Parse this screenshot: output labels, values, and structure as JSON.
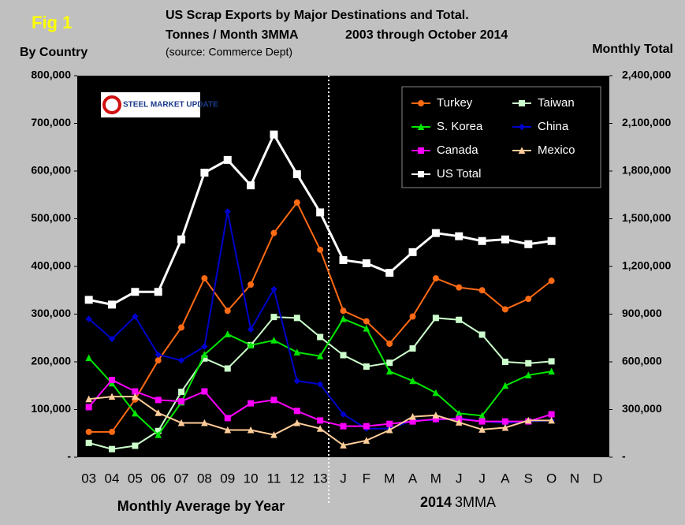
{
  "chart_data": {
    "type": "line",
    "fig_label": "Fig 1",
    "title": "US Scrap Exports by Major Destinations and Total.",
    "subtitle": [
      "Tonnes / Month 3MMA",
      "2003 through October 2014"
    ],
    "source": "(source:  Commerce Dept)",
    "logo": "STEEL MARKET UPDATE",
    "y_label": "By Country",
    "y2_label": "Monthly Total",
    "x_label_left": "Monthly Average by Year",
    "x_label_right": [
      "2014",
      "3MMA"
    ],
    "categories": [
      "03",
      "04",
      "05",
      "06",
      "07",
      "08",
      "09",
      "10",
      "11",
      "12",
      "13",
      "J",
      "F",
      "M",
      "A",
      "M",
      "J",
      "J",
      "A",
      "S",
      "O",
      "N",
      "D"
    ],
    "ylim": [
      0,
      800000
    ],
    "yticks": [
      {
        "value": 0,
        "label": "-"
      },
      {
        "value": 100000,
        "label": "100,000"
      },
      {
        "value": 200000,
        "label": "200,000"
      },
      {
        "value": 300000,
        "label": "300,000"
      },
      {
        "value": 400000,
        "label": "400,000"
      },
      {
        "value": 500000,
        "label": "500,000"
      },
      {
        "value": 600000,
        "label": "600,000"
      },
      {
        "value": 700000,
        "label": "700,000"
      },
      {
        "value": 800000,
        "label": "800,000"
      }
    ],
    "y2lim": [
      0,
      2400000
    ],
    "y2ticks": [
      {
        "value": 0,
        "label": "-"
      },
      {
        "value": 300000,
        "label": "300,000"
      },
      {
        "value": 600000,
        "label": "600,000"
      },
      {
        "value": 900000,
        "label": "900,000"
      },
      {
        "value": 1200000,
        "label": "1,200,000"
      },
      {
        "value": 1500000,
        "label": "1,500,000"
      },
      {
        "value": 1800000,
        "label": "1,800,000"
      },
      {
        "value": 2100000,
        "label": "2,100,000"
      },
      {
        "value": 2400000,
        "label": "2,400,000"
      }
    ],
    "grid": false,
    "legend": "upper right",
    "series": [
      {
        "name": "Turkey",
        "color": "#ff6a13",
        "marker": "circle",
        "values": [
          53000,
          53000,
          121000,
          203000,
          272000,
          375000,
          307000,
          362000,
          470000,
          534000,
          435000,
          307000,
          285000,
          238000,
          295000,
          375000,
          356000,
          350000,
          310000,
          332000,
          370000,
          null,
          null
        ]
      },
      {
        "name": "Taiwan",
        "color": "#ccffcc",
        "marker": "square",
        "values": [
          30000,
          17000,
          24000,
          55000,
          137000,
          207000,
          186000,
          235000,
          294000,
          292000,
          252000,
          214000,
          190000,
          198000,
          228000,
          292000,
          288000,
          257000,
          200000,
          197000,
          201000,
          null,
          null
        ]
      },
      {
        "name": "S. Korea",
        "color": "#00e600",
        "marker": "triangle",
        "values": [
          208000,
          155000,
          92000,
          47000,
          115000,
          215000,
          258000,
          235000,
          245000,
          220000,
          212000,
          290000,
          270000,
          180000,
          160000,
          135000,
          92000,
          87000,
          150000,
          172000,
          180000,
          null,
          null
        ]
      },
      {
        "name": "China",
        "color": "#0000cc",
        "marker": "diamond",
        "values": [
          290000,
          248000,
          295000,
          215000,
          203000,
          232000,
          515000,
          268000,
          352000,
          160000,
          153000,
          90000,
          60000,
          60000,
          77000,
          78000,
          82000,
          75000,
          72000,
          75000,
          77000,
          null,
          null
        ]
      },
      {
        "name": "Canada",
        "color": "#ff00ff",
        "marker": "square",
        "values": [
          105000,
          162000,
          138000,
          120000,
          117000,
          138000,
          82000,
          113000,
          120000,
          97000,
          77000,
          65000,
          65000,
          70000,
          75000,
          80000,
          80000,
          75000,
          75000,
          75000,
          90000,
          null,
          null
        ]
      },
      {
        "name": "Mexico",
        "color": "#ffcc99",
        "marker": "triangle",
        "values": [
          122000,
          127000,
          127000,
          93000,
          72000,
          72000,
          57000,
          57000,
          47000,
          72000,
          60000,
          25000,
          35000,
          57000,
          85000,
          88000,
          73000,
          58000,
          62000,
          77000,
          77000,
          null,
          null
        ]
      },
      {
        "name": "US Total",
        "color": "#ffffff",
        "marker": "square",
        "axis": "y2",
        "values": [
          990000,
          960000,
          1040000,
          1040000,
          1370000,
          1790000,
          1870000,
          1710000,
          2030000,
          1780000,
          1540000,
          1240000,
          1220000,
          1160000,
          1290000,
          1410000,
          1390000,
          1360000,
          1370000,
          1340000,
          1360000,
          null,
          null
        ]
      }
    ]
  }
}
